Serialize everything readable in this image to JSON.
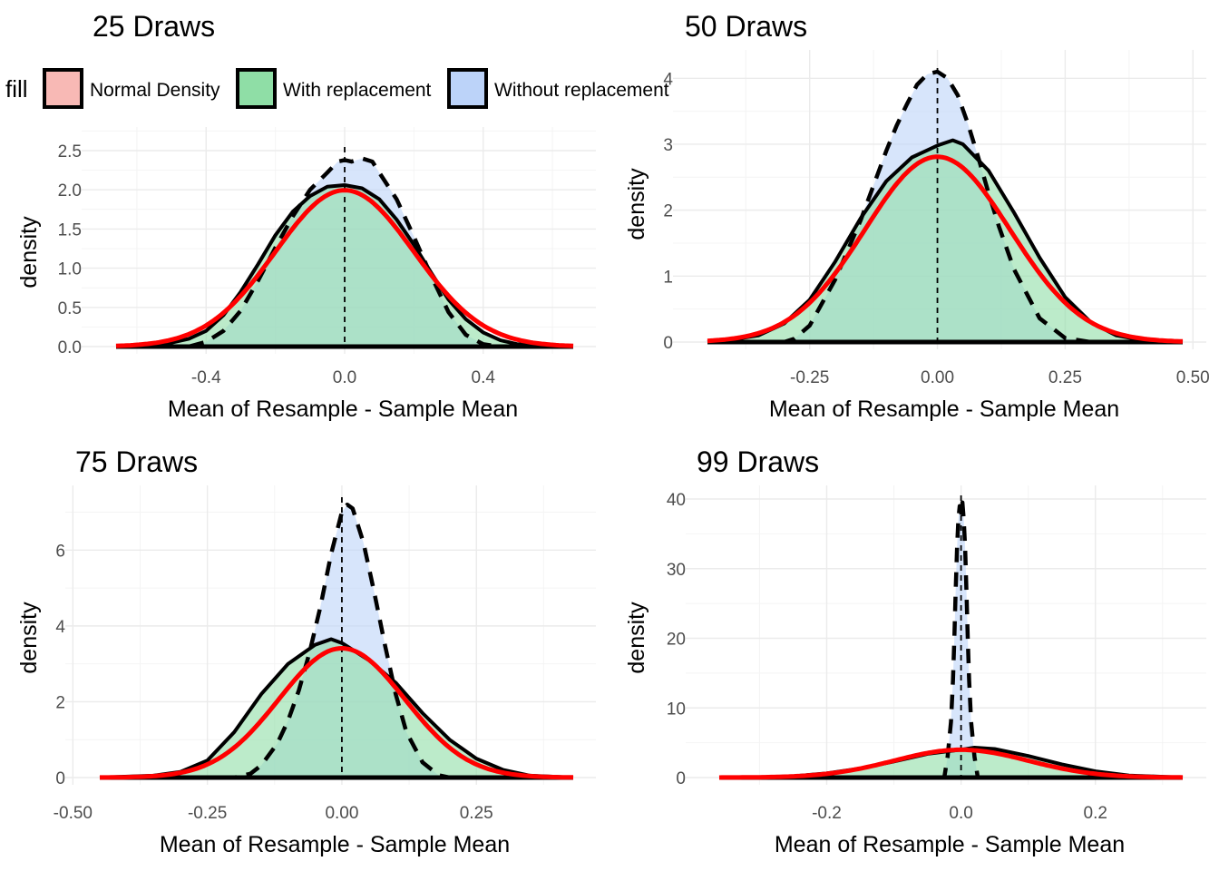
{
  "legend": {
    "title": "fill",
    "items": [
      {
        "label": "Normal Density",
        "color": "#F8B9B5"
      },
      {
        "label": "With replacement",
        "color": "#8FDEA6"
      },
      {
        "label": "Without replacement",
        "color": "#BCD3F9"
      }
    ]
  },
  "colors": {
    "with_fill": "#8FDEA6",
    "without_fill": "#BCD3F9",
    "normal_line": "#FF0000",
    "line": "#000000"
  },
  "chart_data": [
    {
      "type": "area",
      "title": "25 Draws",
      "xlabel": "Mean of Resample - Sample Mean",
      "ylabel": "density",
      "xlim": [
        -0.66,
        0.66
      ],
      "ylim": [
        0,
        2.5
      ],
      "xticks": [
        -0.4,
        0.0,
        0.4
      ],
      "xtick_labels": [
        "-0.4",
        "0.0",
        "0.4"
      ],
      "yticks": [
        0,
        0.5,
        1.0,
        1.5,
        2.0,
        2.5
      ],
      "ytick_labels": [
        "0.0",
        "0.5",
        "1.0",
        "1.5",
        "2.0",
        "2.5"
      ],
      "grid": true,
      "vline_x": 0,
      "series": [
        {
          "key": "without",
          "style": "dashed",
          "fill": "#BCD3F9",
          "x": [
            -0.66,
            -0.45,
            -0.4,
            -0.35,
            -0.3,
            -0.25,
            -0.2,
            -0.15,
            -0.1,
            -0.05,
            -0.02,
            0.0,
            0.02,
            0.05,
            0.08,
            0.1,
            0.15,
            0.2,
            0.25,
            0.3,
            0.35,
            0.4,
            0.45,
            0.66
          ],
          "y": [
            0.0,
            0.0,
            0.06,
            0.2,
            0.46,
            0.84,
            1.26,
            1.66,
            2.0,
            2.22,
            2.36,
            2.38,
            2.36,
            2.4,
            2.36,
            2.22,
            1.88,
            1.4,
            0.9,
            0.44,
            0.15,
            0.03,
            0.0,
            0.0
          ]
        },
        {
          "key": "with",
          "style": "solid",
          "fill": "#8FDEA6",
          "x": [
            -0.66,
            -0.6,
            -0.5,
            -0.45,
            -0.4,
            -0.35,
            -0.3,
            -0.25,
            -0.2,
            -0.15,
            -0.1,
            -0.05,
            0.0,
            0.05,
            0.1,
            0.15,
            0.2,
            0.25,
            0.3,
            0.35,
            0.4,
            0.45,
            0.5,
            0.6,
            0.66
          ],
          "y": [
            0.0,
            0.01,
            0.05,
            0.1,
            0.2,
            0.4,
            0.7,
            1.05,
            1.42,
            1.72,
            1.92,
            2.04,
            2.06,
            2.02,
            1.88,
            1.62,
            1.3,
            0.94,
            0.6,
            0.35,
            0.18,
            0.08,
            0.03,
            0.01,
            0.0
          ]
        },
        {
          "key": "normal",
          "style": "normal",
          "mean": 0.0,
          "sd": 0.2,
          "xrange": [
            -0.66,
            0.66
          ]
        }
      ]
    },
    {
      "type": "area",
      "title": "50 Draws",
      "xlabel": "Mean of Resample - Sample Mean",
      "ylabel": "density",
      "xlim": [
        -0.45,
        0.48
      ],
      "ylim": [
        0,
        4.1
      ],
      "xticks": [
        -0.25,
        0.0,
        0.25,
        0.5
      ],
      "xtick_labels": [
        "-0.25",
        "0.00",
        "0.25",
        "0.50"
      ],
      "yticks": [
        0,
        1,
        2,
        3,
        4
      ],
      "ytick_labels": [
        "0",
        "1",
        "2",
        "3",
        "4"
      ],
      "grid": true,
      "vline_x": 0,
      "series": [
        {
          "key": "without",
          "style": "dashed",
          "fill": "#BCD3F9",
          "x": [
            -0.45,
            -0.3,
            -0.28,
            -0.25,
            -0.2,
            -0.15,
            -0.1,
            -0.08,
            -0.06,
            -0.04,
            -0.02,
            0.0,
            0.02,
            0.04,
            0.06,
            0.08,
            0.1,
            0.12,
            0.15,
            0.2,
            0.25,
            0.3,
            0.48
          ],
          "y": [
            0.0,
            0.0,
            0.05,
            0.25,
            0.95,
            1.85,
            2.9,
            3.28,
            3.6,
            3.9,
            4.06,
            4.1,
            4.0,
            3.74,
            3.3,
            2.8,
            2.26,
            1.76,
            1.1,
            0.36,
            0.06,
            0.0,
            0.0
          ]
        },
        {
          "key": "with",
          "style": "solid",
          "fill": "#8FDEA6",
          "x": [
            -0.45,
            -0.4,
            -0.35,
            -0.3,
            -0.25,
            -0.2,
            -0.15,
            -0.1,
            -0.05,
            0.0,
            0.03,
            0.05,
            0.1,
            0.15,
            0.2,
            0.25,
            0.3,
            0.35,
            0.4,
            0.48
          ],
          "y": [
            0.0,
            0.04,
            0.1,
            0.28,
            0.64,
            1.22,
            1.88,
            2.44,
            2.8,
            2.98,
            3.06,
            3.0,
            2.6,
            1.96,
            1.28,
            0.68,
            0.3,
            0.1,
            0.03,
            0.0
          ]
        },
        {
          "key": "normal",
          "style": "normal",
          "mean": 0.0,
          "sd": 0.142,
          "xrange": [
            -0.45,
            0.48
          ]
        }
      ]
    },
    {
      "type": "area",
      "title": "75 Draws",
      "xlabel": "Mean of Resample - Sample Mean",
      "ylabel": "density",
      "xlim": [
        -0.45,
        0.43
      ],
      "ylim": [
        0,
        7.3
      ],
      "xticks": [
        -0.5,
        -0.25,
        0.0,
        0.25
      ],
      "xtick_labels": [
        "-0.50",
        "-0.25",
        "0.00",
        "0.25"
      ],
      "yticks": [
        0,
        2,
        4,
        6
      ],
      "ytick_labels": [
        "0",
        "2",
        "4",
        "6"
      ],
      "grid": true,
      "vline_x": 0,
      "series": [
        {
          "key": "without",
          "style": "dashed",
          "fill": "#BCD3F9",
          "x": [
            -0.45,
            -0.2,
            -0.17,
            -0.15,
            -0.12,
            -0.1,
            -0.08,
            -0.06,
            -0.04,
            -0.02,
            0.0,
            0.01,
            0.02,
            0.04,
            0.06,
            0.08,
            0.1,
            0.12,
            0.15,
            0.18,
            0.2,
            0.43
          ],
          "y": [
            0.0,
            0.0,
            0.1,
            0.32,
            0.9,
            1.5,
            2.3,
            3.3,
            4.5,
            5.9,
            7.0,
            7.2,
            7.1,
            6.2,
            4.9,
            3.5,
            2.2,
            1.2,
            0.4,
            0.06,
            0.0,
            0.0
          ]
        },
        {
          "key": "with",
          "style": "solid",
          "fill": "#8FDEA6",
          "x": [
            -0.45,
            -0.35,
            -0.3,
            -0.25,
            -0.2,
            -0.15,
            -0.1,
            -0.05,
            -0.02,
            0.0,
            0.05,
            0.1,
            0.15,
            0.2,
            0.25,
            0.3,
            0.35,
            0.43
          ],
          "y": [
            0.0,
            0.05,
            0.15,
            0.45,
            1.2,
            2.2,
            3.0,
            3.5,
            3.65,
            3.55,
            3.1,
            2.5,
            1.7,
            1.0,
            0.5,
            0.2,
            0.05,
            0.0
          ]
        },
        {
          "key": "normal",
          "style": "normal",
          "mean": 0.0,
          "sd": 0.117,
          "xrange": [
            -0.45,
            0.43
          ]
        }
      ]
    },
    {
      "type": "area",
      "title": "99 Draws",
      "xlabel": "Mean of Resample - Sample Mean",
      "ylabel": "density",
      "xlim": [
        -0.36,
        0.33
      ],
      "ylim": [
        0,
        40
      ],
      "xticks": [
        -0.2,
        0.0,
        0.2
      ],
      "xtick_labels": [
        "-0.2",
        "0.0",
        "0.2"
      ],
      "yticks": [
        0,
        10,
        20,
        30,
        40
      ],
      "ytick_labels": [
        "0",
        "10",
        "20",
        "30",
        "40"
      ],
      "grid": true,
      "vline_x": 0,
      "series": [
        {
          "key": "without",
          "style": "dashed",
          "fill": "#BCD3F9",
          "x": [
            -0.36,
            -0.025,
            -0.02,
            -0.015,
            -0.012,
            -0.01,
            -0.008,
            -0.006,
            -0.004,
            -0.002,
            0.0,
            0.002,
            0.004,
            0.006,
            0.008,
            0.01,
            0.012,
            0.015,
            0.02,
            0.025,
            0.33
          ],
          "y": [
            0.0,
            0.0,
            3.0,
            8.0,
            14.0,
            20.0,
            27.0,
            33.0,
            37.0,
            39.0,
            38.0,
            39.5,
            37.0,
            33.0,
            27.0,
            20.0,
            14.0,
            8.0,
            3.0,
            0.0,
            0.0
          ]
        },
        {
          "key": "with",
          "style": "solid",
          "fill": "#8FDEA6",
          "x": [
            -0.36,
            -0.3,
            -0.25,
            -0.2,
            -0.15,
            -0.1,
            -0.05,
            0.0,
            0.02,
            0.05,
            0.1,
            0.15,
            0.2,
            0.25,
            0.33
          ],
          "y": [
            0.0,
            0.05,
            0.2,
            0.6,
            1.3,
            2.3,
            3.4,
            4.0,
            4.3,
            4.1,
            3.1,
            1.9,
            0.9,
            0.3,
            0.0
          ]
        },
        {
          "key": "normal",
          "style": "normal",
          "mean": 0.0,
          "sd": 0.1,
          "xrange": [
            -0.36,
            0.33
          ]
        }
      ]
    }
  ]
}
